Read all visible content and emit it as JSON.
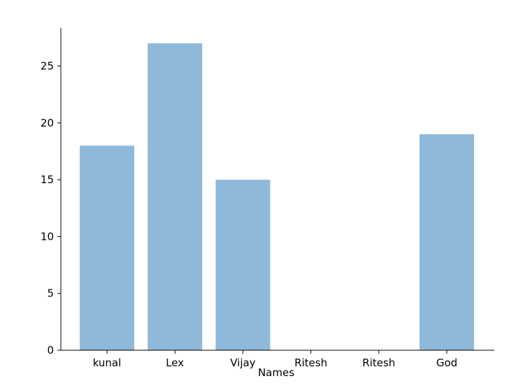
{
  "chart_data": {
    "type": "bar",
    "title": "",
    "xlabel": "Names",
    "ylabel": "",
    "categories": [
      "kunal",
      "Lex",
      "Vijay",
      "Ritesh",
      "Ritesh",
      "God"
    ],
    "values": [
      18,
      27,
      15,
      0,
      0,
      19
    ],
    "ylim": [
      0,
      28.35
    ],
    "yticks": [
      0,
      5,
      10,
      15,
      20,
      25
    ],
    "ytick_labels": [
      "0",
      "5",
      "10",
      "15",
      "20",
      "25"
    ],
    "bar_color": "#8fb9da",
    "axis_color": "#000000",
    "grid": false,
    "legend": "none"
  }
}
